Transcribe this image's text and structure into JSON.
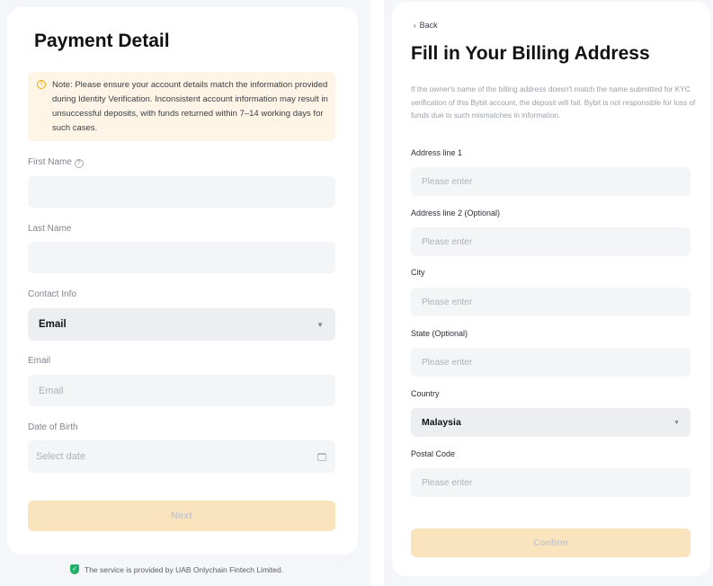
{
  "left": {
    "title": "Payment Detail",
    "note": "Note: Please ensure your account details match the information provided during Identity Verification. Inconsistent account information may result in unsuccessful deposits, with funds returned within 7–14 working days for such cases.",
    "first_name_label": "First Name",
    "first_name_value": "",
    "last_name_label": "Last Name",
    "last_name_value": "",
    "contact_label": "Contact Info",
    "contact_value": "Email",
    "email_label": "Email",
    "email_placeholder": "Email",
    "dob_label": "Date of Birth",
    "dob_placeholder": "Select date",
    "next": "Next",
    "footer": "The service is provided by UAB Onlychain Fintech Limited."
  },
  "right": {
    "back": "Back",
    "title": "Fill in Your Billing Address",
    "description": "If the owner's name of the billing address doesn't match the name submitted for KYC verification of this Bybit account, the deposit will fail. Bybit is not responsible for loss of funds due to such mismatches in information.",
    "address1_label": "Address line 1",
    "address2_label": "Address line 2 (Optional)",
    "city_label": "City",
    "state_label": "State (Optional)",
    "country_label": "Country",
    "country_value": "Malaysia",
    "postal_label": "Postal Code",
    "placeholder": "Please enter",
    "confirm": "Confirm"
  },
  "colors": {
    "accent_disabled": "#f9e4bd",
    "warning_bg": "#fef5e7",
    "warning_icon": "#f7a600",
    "shield": "#20b26c"
  }
}
